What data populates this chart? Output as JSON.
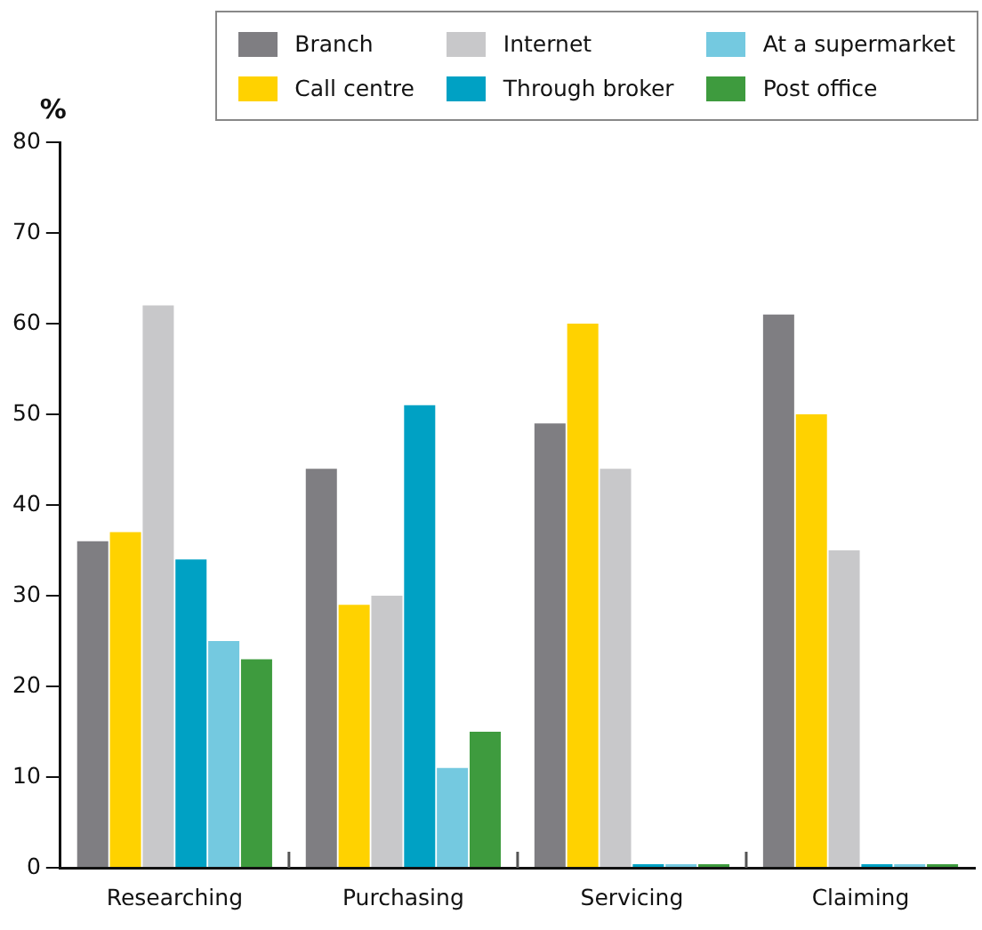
{
  "chart_data": {
    "type": "bar",
    "ylabel": "%",
    "categories": [
      "Researching",
      "Purchasing",
      "Servicing",
      "Claiming"
    ],
    "series": [
      {
        "name": "Branch",
        "color": "#7f7e82",
        "values": [
          36,
          44,
          49,
          61
        ]
      },
      {
        "name": "Call centre",
        "color": "#ffd200",
        "values": [
          37,
          29,
          60,
          50
        ]
      },
      {
        "name": "Internet",
        "color": "#c8c8ca",
        "values": [
          62,
          30,
          44,
          35
        ]
      },
      {
        "name": "Through broker",
        "color": "#00a1c4",
        "values": [
          34,
          51,
          0,
          0
        ]
      },
      {
        "name": "At a supermarket",
        "color": "#74c9e0",
        "values": [
          25,
          11,
          0,
          0
        ]
      },
      {
        "name": "Post office",
        "color": "#3e9b3e",
        "values": [
          23,
          15,
          0,
          0
        ]
      }
    ],
    "ylim": [
      0,
      80
    ],
    "yticks": [
      0,
      10,
      20,
      30,
      40,
      50,
      60,
      70,
      80
    ],
    "grid": false,
    "legend": "top right"
  }
}
